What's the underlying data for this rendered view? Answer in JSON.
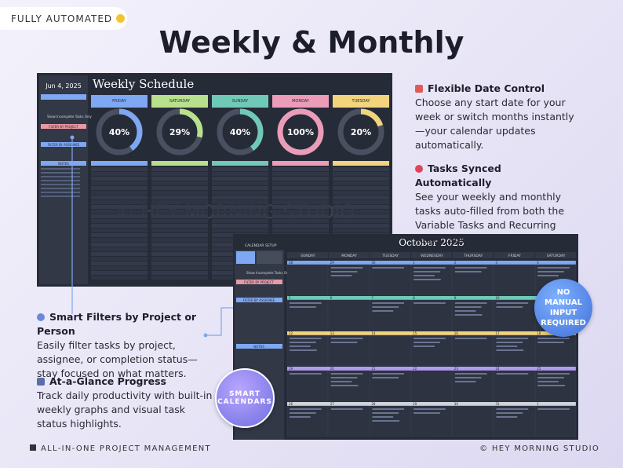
{
  "badge": "FULLY AUTOMATED",
  "title": "Weekly & Monthly",
  "weekly": {
    "date": "Jun 4, 2025",
    "heading": "Weekly Schedule",
    "sidebar": [
      "Show Incomplete Tasks Only",
      "FILTER BY PROJECT",
      "FILTER BY ASSIGNEE",
      "NOTES"
    ],
    "days": [
      {
        "name": "FRIDAY",
        "color": "#7ea8f2",
        "percent": 40,
        "percent_label": "40%"
      },
      {
        "name": "SATURDAY",
        "color": "#b9e08c",
        "percent": 29,
        "percent_label": "29%"
      },
      {
        "name": "SUNDAY",
        "color": "#6fc9b6",
        "percent": 40,
        "percent_label": "40%"
      },
      {
        "name": "MONDAY",
        "color": "#ea9cb8",
        "percent": 100,
        "percent_label": "100%"
      },
      {
        "name": "TUESDAY",
        "color": "#f1d47c",
        "percent": 20,
        "percent_label": "20%"
      }
    ],
    "watermark": "© HEY MORNING STUDIO"
  },
  "monthly": {
    "heading": "October 2025",
    "setup": "CALENDAR SETUP",
    "sidebar": [
      "Show Incomplete Tasks Only",
      "FILTER BY PROJECT",
      "FILTER BY ASSIGNEE",
      "NOTES"
    ],
    "weekdays": [
      "SUNDAY",
      "MONDAY",
      "TUESDAY",
      "WEDNESDAY",
      "THURSDAY",
      "FRIDAY",
      "SATURDAY"
    ],
    "row_colors": [
      "#7ea8f2",
      "#6fc9b6",
      "#f1d47c",
      "#b39cf0",
      "#cfd3da"
    ],
    "dates": [
      [
        "28",
        "29",
        "30",
        "1",
        "2",
        "3",
        "4"
      ],
      [
        "5",
        "6",
        "7",
        "8",
        "9",
        "10",
        "11"
      ],
      [
        "12",
        "13",
        "14",
        "15",
        "16",
        "17",
        "18"
      ],
      [
        "19",
        "20",
        "21",
        "22",
        "23",
        "24",
        "25"
      ],
      [
        "26",
        "27",
        "28",
        "29",
        "30",
        "31",
        "1"
      ]
    ]
  },
  "features": [
    {
      "title": "Flexible Date Control",
      "body": "Choose any start date for your week or switch months instantly—your calendar updates automatically."
    },
    {
      "title": "Tasks Synced Automatically",
      "body": "See your weekly and monthly tasks auto-filled from both the Variable Tasks and Recurring Tasks tabs."
    },
    {
      "title": "Smart Filters by Project or Person",
      "body": "Easily filter tasks by project, assignee, or completion status—stay focused on what matters."
    },
    {
      "title": "At-a-Glance Progress",
      "body": "Track daily productivity with built-in weekly graphs and visual task status highlights."
    }
  ],
  "stickers": [
    "NO MANUAL INPUT REQUIRED",
    "SMART CALENDARS"
  ],
  "footer": {
    "left": "ALL-IN-ONE PROJECT MANAGEMENT",
    "right": "© HEY MORNING STUDIO"
  }
}
